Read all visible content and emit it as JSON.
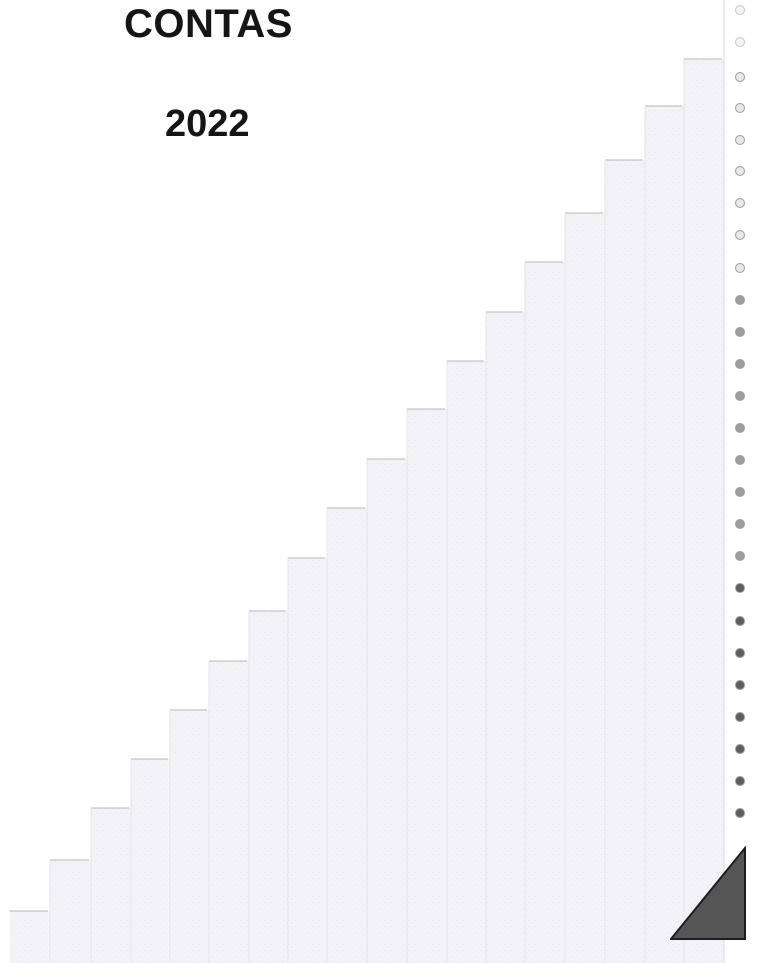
{
  "document": {
    "title": "CONTAS",
    "year": "2022"
  },
  "colors": {
    "background": "#ffffff",
    "text": "#151515",
    "stair_fill": "#f1f1f6",
    "stair_edge": "#b4b4bc",
    "hole_fill_light": "#e8e8ec",
    "hole_fill_dark": "#5e5e62",
    "hole_edge": "#9a9aa0",
    "corner_tab_fill": "#555555",
    "corner_tab_edge": "#1e1e1e"
  }
}
